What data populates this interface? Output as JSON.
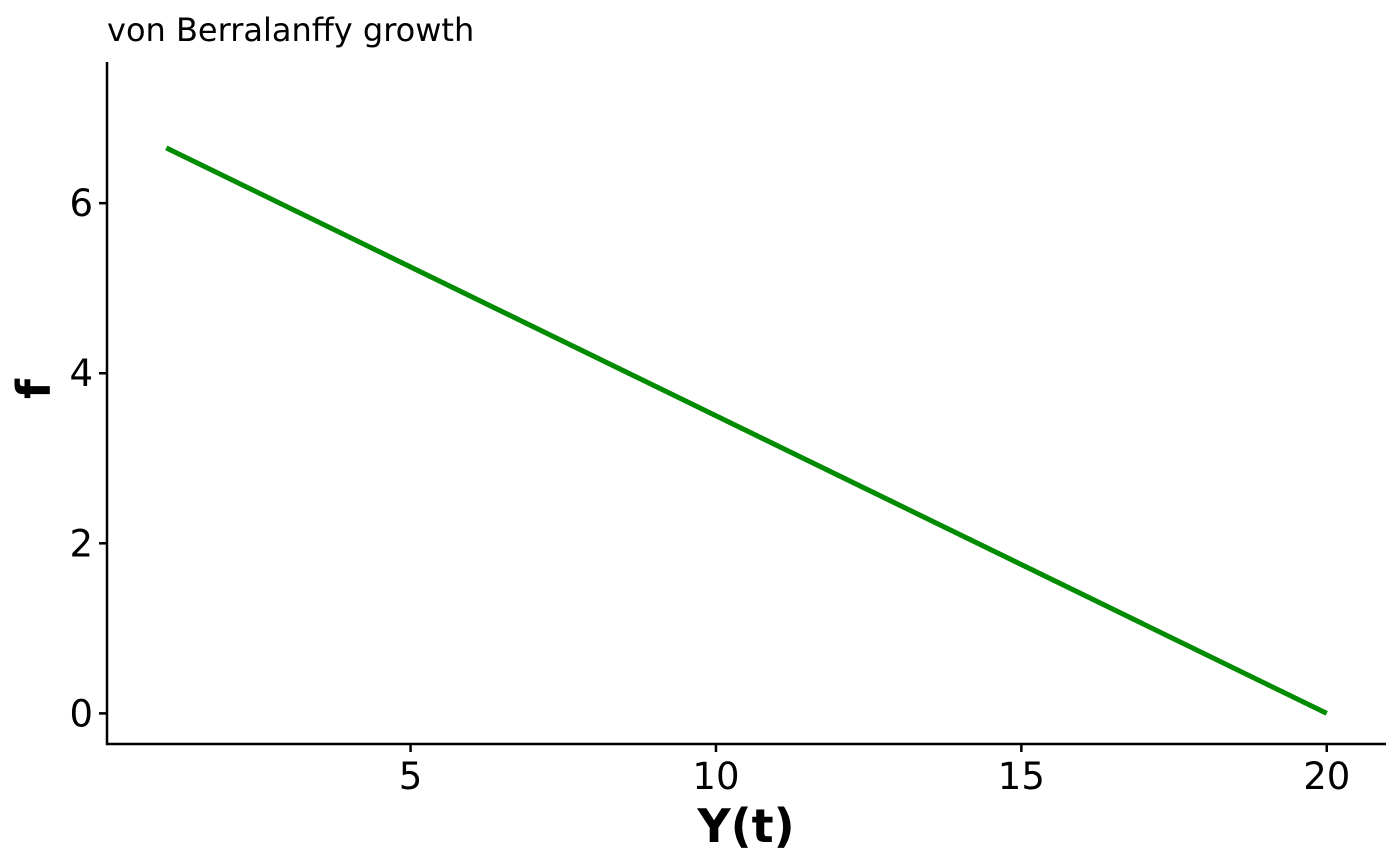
{
  "chart_data": {
    "type": "line",
    "title": "von Berralanffy growth",
    "xlabel": "Y(t)",
    "ylabel": "f",
    "xlim": [
      0.03,
      20.97
    ],
    "ylim": [
      -0.36,
      7.66
    ],
    "x_ticks": [
      5,
      10,
      15,
      20
    ],
    "y_ticks": [
      0,
      2,
      4,
      6
    ],
    "grid": false,
    "legend": "none",
    "series": [
      {
        "color": "#008B00",
        "x": [
          1,
          20
        ],
        "y": [
          6.65,
          0
        ]
      }
    ]
  }
}
